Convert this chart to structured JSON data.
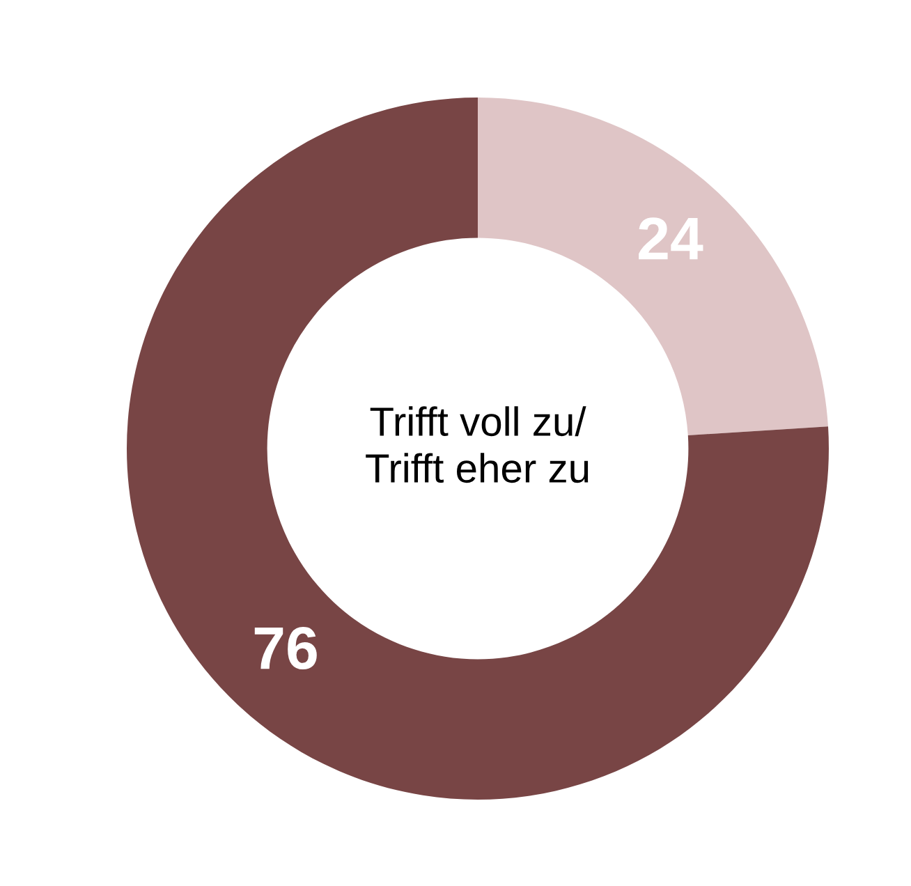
{
  "chart_data": {
    "type": "donut",
    "categories": [
      null,
      null
    ],
    "values": [
      24,
      76
    ],
    "colors": [
      "#dfc5c6",
      "#784545"
    ],
    "data_labels": true,
    "annotations": [
      "Trifft voll zu/\nTrifft eher zu"
    ]
  }
}
